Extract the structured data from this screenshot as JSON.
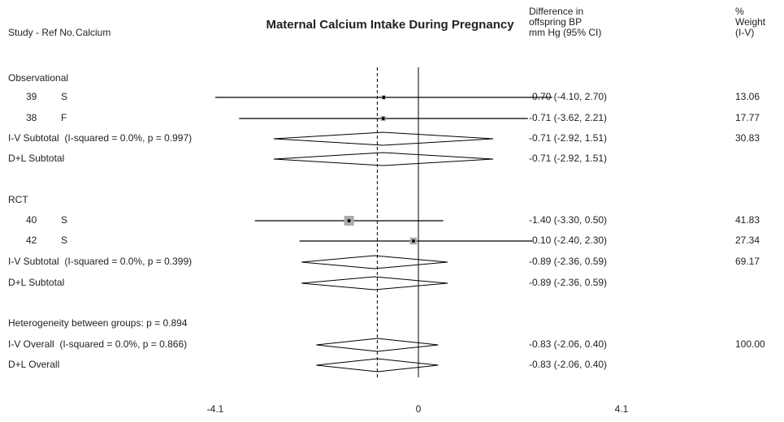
{
  "chart_data": {
    "type": "forest",
    "title": "Maternal Calcium Intake During Pregnancy",
    "study_header": "Study - Ref No.",
    "group_header": "Calcium",
    "ci_header": [
      "Difference in",
      "offspring BP",
      "mm Hg (95% CI)"
    ],
    "weight_header": [
      "%",
      "Weight",
      "(I-V)"
    ],
    "xlim": [
      -4.1,
      4.1
    ],
    "xticks": [
      {
        "value": -4.1,
        "label": "-4.1"
      },
      0,
      {
        "value": 4.1,
        "label": "4.1"
      }
    ],
    "null_line": 0,
    "rows": [
      {
        "label": "Observational"
      },
      {
        "label": "39",
        "group": "S",
        "effect": -0.7,
        "lo": -4.1,
        "hi": 2.7,
        "ci_label": "-0.70 (-4.10, 2.70)",
        "weight": 13.06,
        "weight_label": "13.06"
      },
      {
        "label": "38",
        "group": "F",
        "effect": -0.71,
        "lo": -3.62,
        "hi": 2.21,
        "ci_label": "-0.71 (-3.62, 2.21)",
        "weight": 17.77,
        "weight_label": "17.77"
      },
      {
        "label": "I-V Subtotal  (I-squared = 0.0%, p = 0.997)",
        "effect": -0.71,
        "lo": -2.92,
        "hi": 1.51,
        "ci_label": "-0.71 (-2.92, 1.51)",
        "weight": 30.83,
        "weight_label": "30.83"
      },
      {
        "label": "D+L Subtotal",
        "effect": -0.71,
        "lo": -2.92,
        "hi": 1.51,
        "ci_label": "-0.71 (-2.92, 1.51)"
      },
      {
        "label": "RCT"
      },
      {
        "label": "40",
        "group": "S",
        "effect": -1.4,
        "lo": -3.3,
        "hi": 0.5,
        "ci_label": "-1.40 (-3.30, 0.50)",
        "weight": 41.83,
        "weight_label": "41.83"
      },
      {
        "label": "42",
        "group": "S",
        "effect": -0.1,
        "lo": -2.4,
        "hi": 2.3,
        "ci_label": "-0.10 (-2.40, 2.30)",
        "weight": 27.34,
        "weight_label": "27.34"
      },
      {
        "label": "I-V Subtotal  (I-squared = 0.0%, p = 0.399)",
        "effect": -0.89,
        "lo": -2.36,
        "hi": 0.59,
        "ci_label": "-0.89 (-2.36, 0.59)",
        "weight": 69.17,
        "weight_label": "69.17"
      },
      {
        "label": "D+L Subtotal",
        "effect": -0.89,
        "lo": -2.36,
        "hi": 0.59,
        "ci_label": "-0.89 (-2.36, 0.59)"
      },
      {
        "label": "Heterogeneity between groups: p = 0.894"
      },
      {
        "label": "I-V Overall  (I-squared = 0.0%, p = 0.866)",
        "effect": -0.83,
        "lo": -2.06,
        "hi": 0.4,
        "ci_label": "-0.83 (-2.06, 0.40)",
        "weight": 100.0,
        "weight_label": "100.00"
      },
      {
        "label": "D+L Overall",
        "effect": -0.83,
        "lo": -2.06,
        "hi": 0.4,
        "ci_label": "-0.83 (-2.06, 0.40)"
      }
    ]
  }
}
